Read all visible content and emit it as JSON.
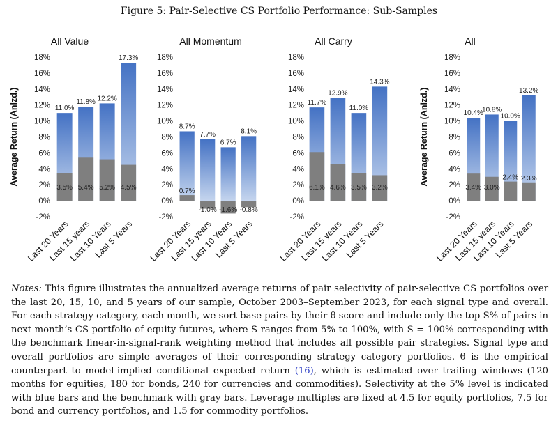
{
  "figure_title": "Figure 5: Pair-Selective CS Portfolio Performance: Sub-Samples",
  "chart_data": [
    {
      "type": "bar",
      "title": "All Value",
      "ylabel": "Average Return (Anlzd.)",
      "xlabel": "",
      "categories": [
        "Last 20 Years",
        "Last 15 years",
        "Last 10 Years",
        "Last 5 Years"
      ],
      "ylim": [
        -2,
        18
      ],
      "yticks": [
        "-2%",
        "0%",
        "2%",
        "4%",
        "6%",
        "8%",
        "10%",
        "12%",
        "14%",
        "16%",
        "18%"
      ],
      "series": [
        {
          "values": [
            11.0,
            11.8,
            12.2,
            17.3
          ],
          "labels": [
            "11.0%",
            "11.8%",
            "12.2%",
            "17.3%"
          ],
          "color": "#4472c4"
        },
        {
          "values": [
            3.5,
            5.4,
            5.2,
            4.5
          ],
          "labels": [
            "3.5%",
            "5.4%",
            "5.2%",
            "4.5%"
          ],
          "color": "#7f7f7f"
        }
      ]
    },
    {
      "type": "bar",
      "title": "All Momentum",
      "ylabel": "",
      "xlabel": "",
      "categories": [
        "Last 20 Years",
        "Last 15 years",
        "Last 10 Years",
        "Last 5 Years"
      ],
      "ylim": [
        -2,
        18
      ],
      "yticks": [
        "-2%",
        "0%",
        "2%",
        "4%",
        "6%",
        "8%",
        "10%",
        "12%",
        "14%",
        "16%",
        "18%"
      ],
      "series": [
        {
          "values": [
            8.7,
            7.7,
            6.7,
            8.1
          ],
          "labels": [
            "8.7%",
            "7.7%",
            "6.7%",
            "8.1%"
          ],
          "color": "#4472c4"
        },
        {
          "values": [
            0.7,
            -1.0,
            -1.6,
            -0.8
          ],
          "labels": [
            "0.7%",
            "-1.0%",
            "-1.6%",
            "-0.8%"
          ],
          "color": "#7f7f7f"
        }
      ]
    },
    {
      "type": "bar",
      "title": "All Carry",
      "ylabel": "",
      "xlabel": "",
      "categories": [
        "Last 20 Years",
        "Last 15 years",
        "Last 10 Years",
        "Last 5 Years"
      ],
      "ylim": [
        -2,
        18
      ],
      "yticks": [
        "-2%",
        "0%",
        "2%",
        "4%",
        "6%",
        "8%",
        "10%",
        "12%",
        "14%",
        "16%",
        "18%"
      ],
      "series": [
        {
          "values": [
            11.7,
            12.9,
            11.0,
            14.3
          ],
          "labels": [
            "11.7%",
            "12.9%",
            "11.0%",
            "14.3%"
          ],
          "color": "#4472c4"
        },
        {
          "values": [
            6.1,
            4.6,
            3.5,
            3.2
          ],
          "labels": [
            "6.1%",
            "4.6%",
            "3.5%",
            "3.2%"
          ],
          "color": "#7f7f7f"
        }
      ]
    },
    {
      "type": "bar",
      "title": "All",
      "ylabel": "Average Return (Anlzd.)",
      "xlabel": "",
      "categories": [
        "Last 20 Years",
        "Last 15 years",
        "Last 10 Years",
        "Last 5 Years"
      ],
      "ylim": [
        -2,
        18
      ],
      "yticks": [
        "-2%",
        "0%",
        "2%",
        "4%",
        "6%",
        "8%",
        "10%",
        "12%",
        "14%",
        "16%",
        "18%"
      ],
      "series": [
        {
          "values": [
            10.4,
            10.8,
            10.0,
            13.2
          ],
          "labels": [
            "10.4%",
            "10.8%",
            "10.0%",
            "13.2%"
          ],
          "color": "#4472c4"
        },
        {
          "values": [
            3.4,
            3.0,
            2.4,
            2.3
          ],
          "labels": [
            "3.4%",
            "3.0%",
            "2.4%",
            "2.3%"
          ],
          "color": "#7f7f7f"
        }
      ]
    }
  ],
  "notes": {
    "lead": "Notes:",
    "text_part1": "This figure illustrates the annualized average returns of pair selectivity of pair-selective CS portfolios over the last 20, 15, 10, and 5 years of our sample, October 2003–September 2023, for each signal type and overall. For each strategy category, each month, we sort base pairs by their θ score and include only the top S% of pairs in next month’s CS portfolio of equity futures, where S ranges from 5% to 100%, with S = 100% corresponding with the benchmark linear-in-signal-rank weighting method that includes all possible pair strategies. Signal type and overall portfolios are simple averages of their corresponding strategy category portfolios. θ is the empirical counterpart to model-implied conditional expected return",
    "ref": "(16)",
    "text_part2": ", which is estimated over trailing windows (120 months for equities, 180 for bonds, 240 for currencies and commodities). Selectivity at the 5% level is indicated with blue bars and the benchmark with gray bars. Leverage multiples are fixed at 4.5 for equity portfolios, 7.5 for bond and currency portfolios, and 1.5 for commodity portfolios."
  }
}
